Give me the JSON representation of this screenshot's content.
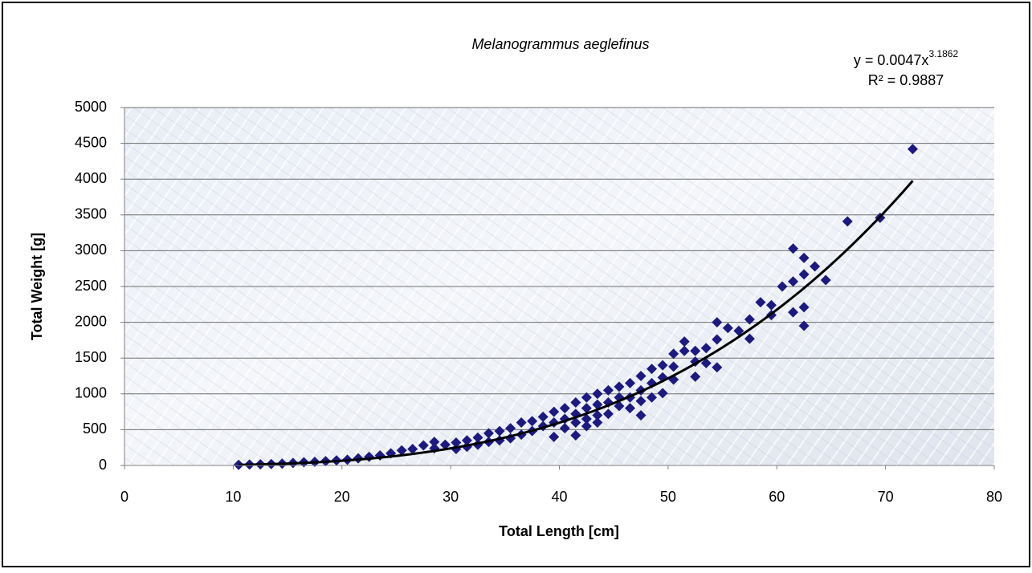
{
  "chart_data": {
    "type": "scatter",
    "title": "Melanogrammus aeglefinus",
    "x_label": "Total Length [cm]",
    "y_label": "Total Weight [g]",
    "equation_label": "y = 0.0047x",
    "equation_exponent": "3.1862",
    "r_squared_label": "R² = 0.9887",
    "trendline": {
      "coefficient": 0.0047,
      "exponent": 3.1862,
      "color": "#000000"
    },
    "xlim": [
      0,
      80
    ],
    "xticks": [
      0,
      10,
      20,
      30,
      40,
      50,
      60,
      70,
      80
    ],
    "ylim": [
      0,
      5000
    ],
    "yticks": [
      0,
      500,
      1000,
      1500,
      2000,
      2500,
      3000,
      3500,
      4000,
      4500,
      5000
    ],
    "grid": true,
    "series": [
      {
        "color": "#1c1a80",
        "x": [
          72.5,
          69.5,
          66.5,
          64.5,
          63.5,
          62.5,
          62.5,
          62.5,
          62.5,
          61.5,
          61.5,
          61.5,
          60.5,
          59.5,
          59.5,
          58.5,
          57.5,
          57.5,
          56.5,
          55.5,
          54.5,
          54.5,
          54.5,
          53.5,
          53.5,
          52.5,
          52.5,
          52.5,
          51.5,
          51.5,
          50.5,
          50.5,
          50.5,
          49.5,
          49.5,
          49.5,
          48.5,
          48.5,
          48.5,
          47.5,
          47.5,
          47.5,
          47.5,
          46.5,
          46.5,
          46.5,
          45.5,
          45.5,
          45.5,
          44.5,
          44.5,
          44.5,
          43.5,
          43.5,
          43.5,
          43.5,
          42.5,
          42.5,
          42.5,
          42.5,
          41.5,
          41.5,
          41.5,
          41.5,
          40.5,
          40.5,
          40.5,
          39.5,
          39.5,
          39.5,
          38.5,
          38.5,
          37.5,
          37.5,
          36.5,
          36.5,
          35.5,
          35.5,
          34.5,
          34.5,
          33.5,
          33.5,
          32.5,
          32.5,
          31.5,
          31.5,
          30.5,
          30.5,
          29.5,
          28.5,
          28.5,
          27.5,
          26.5,
          25.5,
          24.5,
          23.5,
          22.5,
          21.5,
          20.5,
          19.5,
          18.5,
          17.5,
          16.5,
          15.5,
          14.5,
          13.5,
          12.5,
          11.5,
          10.5
        ],
        "values": [
          4420,
          3460,
          3410,
          2590,
          2780,
          2900,
          2670,
          2210,
          1950,
          3030,
          2570,
          2140,
          2500,
          2240,
          2100,
          2280,
          2040,
          1770,
          1880,
          1920,
          2000,
          1760,
          1370,
          1640,
          1430,
          1600,
          1450,
          1240,
          1730,
          1600,
          1560,
          1380,
          1200,
          1400,
          1230,
          1010,
          1350,
          1150,
          950,
          1250,
          1050,
          900,
          700,
          1150,
          950,
          800,
          1100,
          950,
          830,
          1050,
          880,
          720,
          1000,
          850,
          700,
          600,
          950,
          800,
          650,
          550,
          880,
          720,
          600,
          420,
          800,
          650,
          520,
          750,
          600,
          400,
          680,
          550,
          620,
          480,
          600,
          430,
          520,
          380,
          480,
          350,
          450,
          330,
          390,
          290,
          350,
          260,
          320,
          230,
          290,
          330,
          240,
          280,
          230,
          210,
          170,
          140,
          120,
          100,
          80,
          70,
          60,
          50,
          45,
          35,
          25,
          20,
          15,
          12,
          8
        ]
      }
    ]
  }
}
